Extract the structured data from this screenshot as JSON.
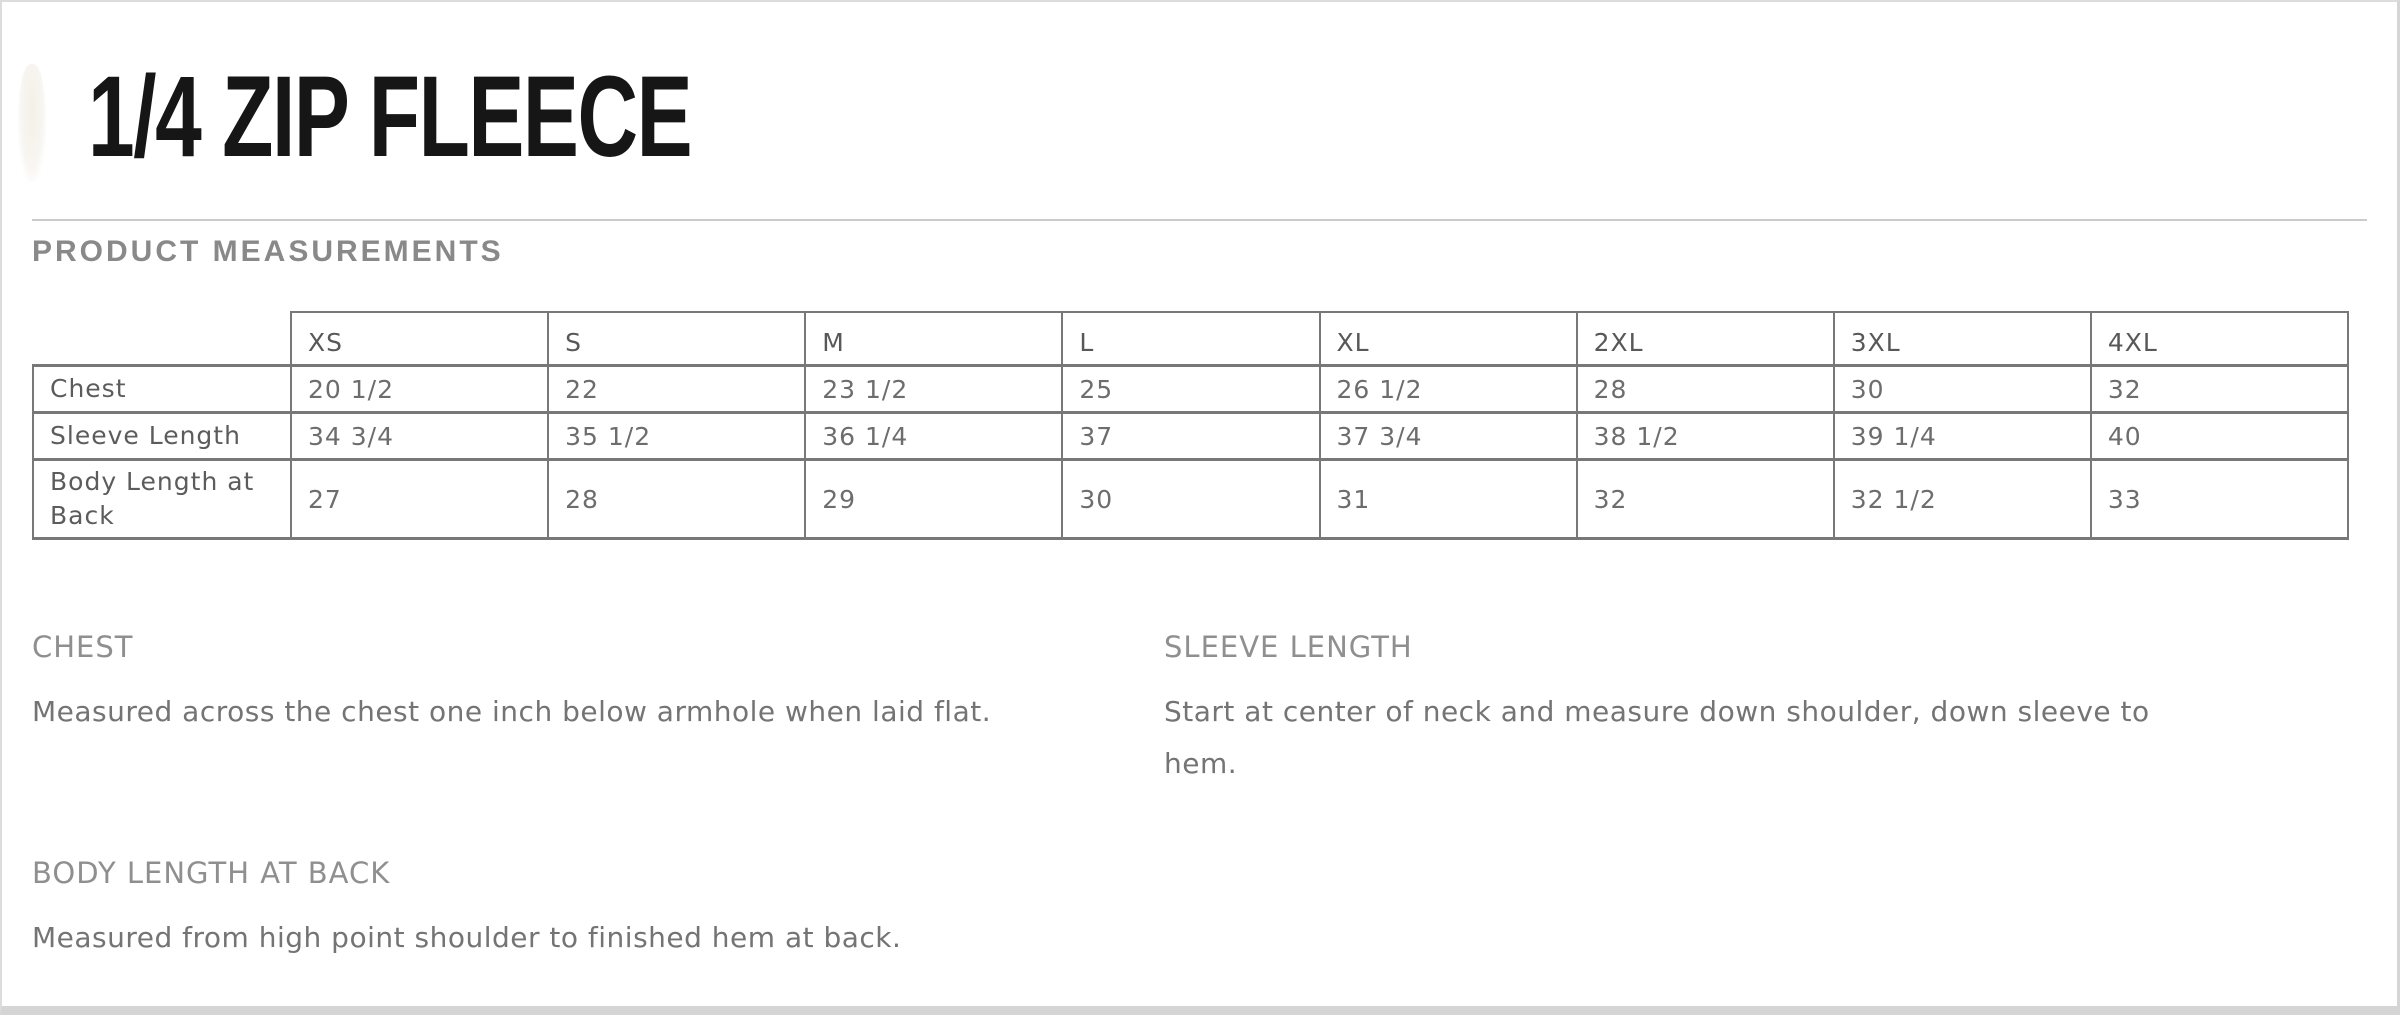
{
  "page": {
    "title": "1/4 ZIP FLEECE",
    "section_heading": "PRODUCT MEASUREMENTS"
  },
  "size_chart": {
    "columns": [
      "XS",
      "S",
      "M",
      "L",
      "XL",
      "2XL",
      "3XL",
      "4XL"
    ],
    "rows": [
      {
        "label": "Chest",
        "values": [
          "20 1/2",
          "22",
          "23 1/2",
          "25",
          "26 1/2",
          "28",
          "30",
          "32"
        ]
      },
      {
        "label": "Sleeve Length",
        "values": [
          "34 3/4",
          "35 1/2",
          "36 1/4",
          "37",
          "37 3/4",
          "38 1/2",
          "39 1/4",
          "40"
        ]
      },
      {
        "label": "Body Length at Back",
        "values": [
          "27",
          "28",
          "29",
          "30",
          "31",
          "32",
          "32 1/2",
          "33"
        ]
      }
    ]
  },
  "definitions": [
    {
      "heading": "CHEST",
      "text": "Measured across the chest one inch below armhole when laid flat."
    },
    {
      "heading": "SLEEVE LENGTH",
      "text": "Start at center of neck and measure down shoulder, down sleeve to\nhem."
    },
    {
      "heading": "BODY LENGTH AT BACK",
      "text": "Measured from high point shoulder to finished hem at back."
    }
  ],
  "colors": {
    "title_text": "#161616",
    "divider": "#cbcbcb",
    "section_heading_text": "#898989",
    "table_border": "#787878",
    "table_text": "#6d6d6d",
    "definition_heading_text": "#8f8f8f",
    "definition_text": "#747474",
    "page_edge": "#d5d5d5"
  }
}
